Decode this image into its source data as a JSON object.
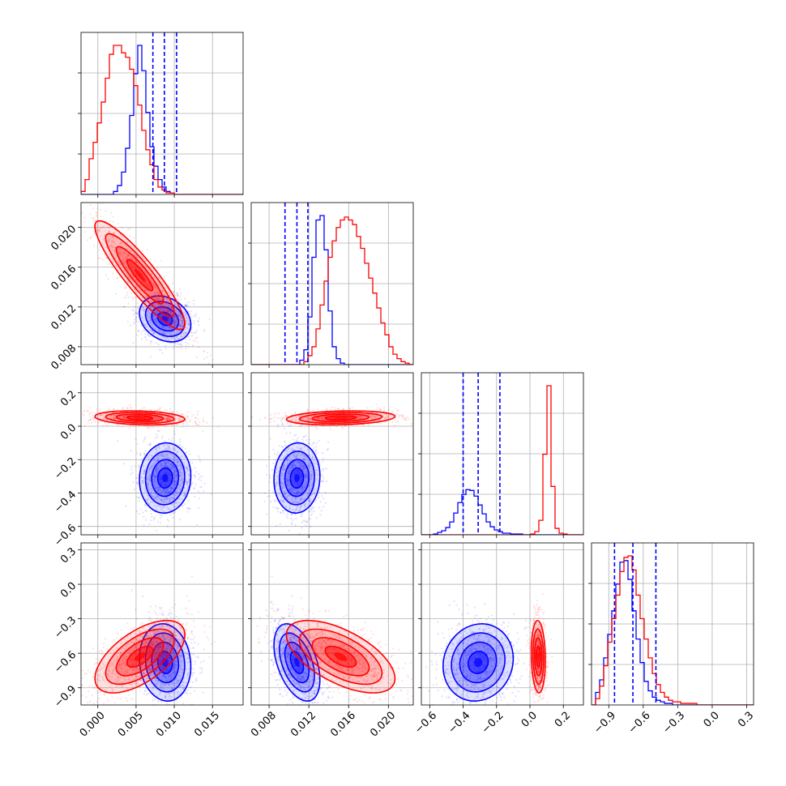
{
  "chart_data": {
    "type": "corner",
    "parameters": [
      {
        "ticks": [
          0.0,
          0.005,
          0.01,
          0.015
        ],
        "labels": [
          "0.000",
          "0.005",
          "0.010",
          "0.015"
        ],
        "range": [
          -0.0022,
          0.019
        ]
      },
      {
        "ticks": [
          0.008,
          0.012,
          0.016,
          0.02
        ],
        "labels": [
          "0.008",
          "0.012",
          "0.016",
          "0.020"
        ],
        "range": [
          0.0062,
          0.0225
        ]
      },
      {
        "ticks": [
          -0.6,
          -0.4,
          -0.2,
          0.0,
          0.2
        ],
        "labels": [
          "−0.6",
          "−0.4",
          "−0.2",
          "0.0",
          "0.2"
        ],
        "range": [
          -0.65,
          0.32
        ]
      },
      {
        "ticks": [
          -0.9,
          -0.6,
          -0.3,
          0.0,
          0.3
        ],
        "labels": [
          "−0.9",
          "−0.6",
          "−0.3",
          "0.0",
          "0.3"
        ],
        "range": [
          -1.05,
          0.36
        ]
      }
    ],
    "series": [
      {
        "color": "#0000ff",
        "mean": [
          0.0088,
          0.0108,
          -0.31,
          -0.68
        ],
        "std": [
          0.0016,
          0.0011,
          0.1,
          0.16
        ],
        "corr": [
          [
            1,
            -0.25,
            0.05,
            -0.1
          ],
          [
            -0.25,
            1,
            0.05,
            -0.45
          ],
          [
            0.05,
            0.05,
            1,
            0.1
          ],
          [
            -0.1,
            -0.45,
            0.1,
            1
          ]
        ],
        "quantiles": [
          [
            0.0072,
            0.0087,
            0.0103
          ],
          [
            0.0096,
            0.0108,
            0.0119
          ],
          [
            -0.4,
            -0.31,
            -0.18
          ],
          [
            -0.85,
            -0.69,
            -0.49
          ]
        ],
        "hist": [
          [
            0,
            0,
            0,
            0,
            0,
            0,
            0,
            0,
            0.02,
            0.06,
            0.15,
            0.31,
            0.53,
            0.81,
            1.0,
            0.83,
            0.55,
            0.32,
            0.19,
            0.1,
            0.05,
            0.02,
            0.01,
            0,
            0,
            0,
            0,
            0,
            0,
            0,
            0,
            0,
            0,
            0,
            0,
            0,
            0,
            0,
            0,
            0
          ],
          [
            0,
            0,
            0,
            0,
            0,
            0,
            0,
            0,
            0,
            0,
            0,
            0,
            0.03,
            0.1,
            0.32,
            0.72,
            0.97,
            1.0,
            0.77,
            0.36,
            0.12,
            0.04,
            0.01,
            0,
            0,
            0,
            0,
            0,
            0,
            0,
            0,
            0,
            0,
            0,
            0,
            0,
            0,
            0,
            0,
            0
          ],
          [
            0,
            0,
            0,
            0.01,
            0.03,
            0.05,
            0.09,
            0.16,
            0.27,
            0.4,
            0.5,
            0.56,
            0.55,
            0.48,
            0.37,
            0.26,
            0.16,
            0.1,
            0.06,
            0.04,
            0.02,
            0.02,
            0.01,
            0.01,
            0.01,
            0,
            0,
            0,
            0,
            0,
            0,
            0,
            0,
            0,
            0,
            0,
            0,
            0,
            0,
            0
          ],
          [
            0,
            0.08,
            0.16,
            0.3,
            0.45,
            0.6,
            0.77,
            0.91,
            0.92,
            0.8,
            0.6,
            0.42,
            0.27,
            0.15,
            0.09,
            0.05,
            0.03,
            0.02,
            0.01,
            0.01,
            0,
            0,
            0,
            0,
            0,
            0,
            0,
            0,
            0,
            0,
            0,
            0,
            0,
            0,
            0,
            0,
            0,
            0,
            0,
            0
          ]
        ]
      },
      {
        "color": "#ff0000",
        "mean": [
          0.0055,
          0.0152,
          0.05,
          -0.63
        ],
        "std": [
          0.0028,
          0.0026,
          0.02,
          0.15
        ],
        "corr": [
          [
            1,
            -0.9,
            -0.2,
            0.6
          ],
          [
            -0.9,
            1,
            0.2,
            -0.6
          ],
          [
            -0.2,
            0.2,
            1,
            -0.1
          ],
          [
            0.6,
            -0.6,
            -0.1,
            1
          ]
        ],
        "hist": [
          [
            0.02,
            0.1,
            0.24,
            0.35,
            0.48,
            0.62,
            0.78,
            0.94,
            1.0,
            1.0,
            0.95,
            0.92,
            0.84,
            0.73,
            0.6,
            0.43,
            0.3,
            0.2,
            0.1,
            0.05,
            0.03,
            0.01,
            0.01,
            0,
            0,
            0,
            0,
            0,
            0,
            0,
            0,
            0,
            0,
            0,
            0,
            0,
            0,
            0,
            0,
            0
          ],
          [
            0,
            0,
            0,
            0,
            0,
            0,
            0,
            0,
            0,
            0,
            0,
            0,
            0,
            0.02,
            0.06,
            0.12,
            0.24,
            0.4,
            0.56,
            0.72,
            0.83,
            0.92,
            0.97,
            0.99,
            0.97,
            0.94,
            0.86,
            0.78,
            0.68,
            0.58,
            0.48,
            0.38,
            0.28,
            0.2,
            0.12,
            0.07,
            0.04,
            0.02,
            0.01,
            0
          ],
          [
            0,
            0,
            0,
            0,
            0,
            0,
            0,
            0,
            0,
            0,
            0,
            0,
            0,
            0,
            0,
            0,
            0,
            0,
            0,
            0,
            0,
            0,
            0,
            0,
            0,
            0,
            0,
            0.01,
            0.04,
            0.18,
            1.0,
            1.85,
            0.6,
            0.08,
            0.02,
            0.01,
            0,
            0,
            0,
            0
          ],
          [
            0,
            0.04,
            0.12,
            0.25,
            0.4,
            0.55,
            0.7,
            0.85,
            0.94,
            0.95,
            0.86,
            0.7,
            0.55,
            0.42,
            0.3,
            0.2,
            0.13,
            0.08,
            0.05,
            0.03,
            0.02,
            0.02,
            0.01,
            0.01,
            0.01,
            0.01,
            0,
            0,
            0,
            0,
            0,
            0,
            0,
            0,
            0,
            0,
            0,
            0,
            0,
            0
          ]
        ]
      }
    ],
    "grid": true
  }
}
